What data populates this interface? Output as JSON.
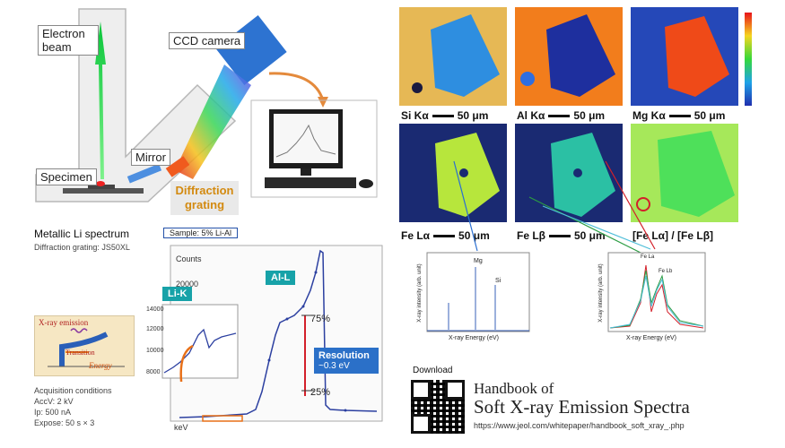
{
  "instrument": {
    "labels": {
      "electron_beam": "Electron beam",
      "ccd_camera": "CCD camera",
      "mirror": "Mirror",
      "specimen": "Specimen",
      "diffraction_grating": "Diffraction grating"
    }
  },
  "li_spectrum": {
    "title": "Metallic Li spectrum",
    "grating": "Diffraction grating: JS50XL",
    "sample": "Sample: 5% Li-Al",
    "counts_label": "Counts",
    "li_k": "Li-K",
    "al_l": "Al-L",
    "pct75": "75%",
    "pct25": "25%",
    "resolution_title": "Resolution",
    "resolution_value": "~0.3 eV",
    "xunit": "keV",
    "ytick_main": "20000",
    "inset_ticks": [
      "14000",
      "12000",
      "10000",
      "8000"
    ]
  },
  "xray_schematic": {
    "emission": "X-ray emission",
    "transition": "Transition",
    "energy": "Energy"
  },
  "acquisition": {
    "title": "Acquisition conditions",
    "lines": [
      "AccV: 2 kV",
      "Ip: 500 nA",
      "Expose: 50 s × 3"
    ]
  },
  "maps": {
    "si": "Si Kα",
    "al": "Al Kα",
    "mg": "Mg Kα",
    "fe_la": "Fe Lα",
    "fe_lb": "Fe Lβ",
    "ratio": "[Fe Lα] / [Fe Lβ]",
    "scale": "50 μm",
    "colors": {
      "high": "#e8141b",
      "mid": "#35d83a",
      "low": "#1f2fae"
    }
  },
  "spectra": {
    "left_xlabel": "X-ray Energy (eV)",
    "left_ylabel": "X-ray intensity (arb. unit)",
    "right_xlabel": "X-ray Energy (eV)",
    "right_ylabel": "X-ray intensity (arb. unit)",
    "left_peaks": [
      "Mg",
      "Si"
    ],
    "right_peaks": [
      "Fe La",
      "Fe Lb"
    ]
  },
  "download": {
    "label": "Download",
    "title_line1": "Handbook of",
    "title_line2": "Soft X-ray Emission Spectra",
    "url": "https://www.jeol.com/whitepaper/handbook_soft_xray_.php"
  }
}
